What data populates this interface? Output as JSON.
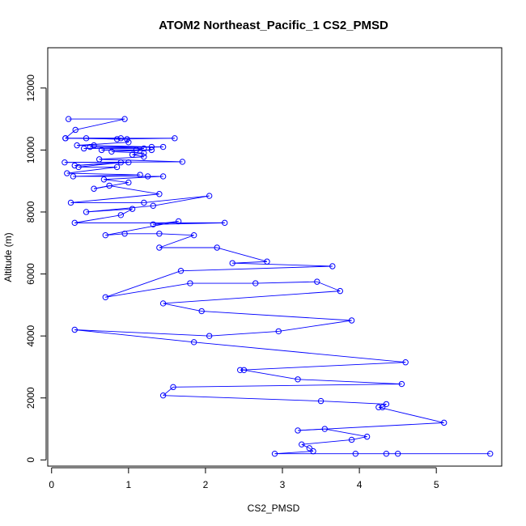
{
  "chart_data": {
    "type": "line",
    "title": "ATOM2 Northeast_Pacific_1 CS2_PMSD",
    "xlabel": "CS2_PMSD",
    "ylabel": "Altitude (m)",
    "xlim": [
      -0.05,
      5.85
    ],
    "ylim": [
      -200,
      13300
    ],
    "xticks": [
      0,
      1,
      2,
      3,
      4,
      5
    ],
    "yticks": [
      0,
      2000,
      4000,
      6000,
      8000,
      10000,
      12000
    ],
    "series_color": "#0000ff",
    "grid": false,
    "marker": "open-circle",
    "points": [
      [
        0.22,
        11000
      ],
      [
        0.95,
        11000
      ],
      [
        0.31,
        10650
      ],
      [
        0.18,
        10380
      ],
      [
        0.9,
        10380
      ],
      [
        0.45,
        10380
      ],
      [
        0.85,
        10350
      ],
      [
        1.6,
        10380
      ],
      [
        0.18,
        10380
      ],
      [
        0.98,
        10350
      ],
      [
        1.0,
        10250
      ],
      [
        0.33,
        10150
      ],
      [
        0.55,
        10150
      ],
      [
        1.3,
        10100
      ],
      [
        0.5,
        10100
      ],
      [
        1.45,
        10100
      ],
      [
        0.42,
        10050
      ],
      [
        1.2,
        10050
      ],
      [
        1.1,
        10000
      ],
      [
        0.65,
        10000
      ],
      [
        1.3,
        10000
      ],
      [
        0.78,
        9950
      ],
      [
        1.2,
        9900
      ],
      [
        1.05,
        9850
      ],
      [
        1.2,
        9780
      ],
      [
        0.62,
        9700
      ],
      [
        1.7,
        9620
      ],
      [
        0.17,
        9600
      ],
      [
        1.0,
        9600
      ],
      [
        0.3,
        9500
      ],
      [
        0.9,
        9600
      ],
      [
        0.35,
        9450
      ],
      [
        0.85,
        9450
      ],
      [
        0.2,
        9250
      ],
      [
        1.15,
        9200
      ],
      [
        0.28,
        9150
      ],
      [
        1.25,
        9150
      ],
      [
        1.45,
        9150
      ],
      [
        0.68,
        9050
      ],
      [
        1.0,
        8950
      ],
      [
        0.55,
        8750
      ],
      [
        0.75,
        8850
      ],
      [
        1.4,
        8580
      ],
      [
        0.25,
        8300
      ],
      [
        1.2,
        8300
      ],
      [
        2.05,
        8520
      ],
      [
        1.32,
        8200
      ],
      [
        0.45,
        8000
      ],
      [
        1.05,
        8100
      ],
      [
        0.9,
        7900
      ],
      [
        0.3,
        7650
      ],
      [
        2.25,
        7650
      ],
      [
        1.32,
        7600
      ],
      [
        1.65,
        7700
      ],
      [
        0.7,
        7250
      ],
      [
        0.95,
        7300
      ],
      [
        1.4,
        7300
      ],
      [
        1.85,
        7250
      ],
      [
        1.4,
        6850
      ],
      [
        2.15,
        6850
      ],
      [
        2.8,
        6400
      ],
      [
        2.35,
        6350
      ],
      [
        3.65,
        6250
      ],
      [
        1.68,
        6100
      ],
      [
        0.7,
        5250
      ],
      [
        1.8,
        5700
      ],
      [
        2.65,
        5700
      ],
      [
        3.45,
        5750
      ],
      [
        3.75,
        5450
      ],
      [
        1.45,
        5050
      ],
      [
        1.95,
        4800
      ],
      [
        3.9,
        4500
      ],
      [
        2.95,
        4150
      ],
      [
        2.05,
        4000
      ],
      [
        0.3,
        4200
      ],
      [
        1.85,
        3800
      ],
      [
        4.6,
        3150
      ],
      [
        2.45,
        2900
      ],
      [
        2.5,
        2900
      ],
      [
        3.2,
        2600
      ],
      [
        4.55,
        2450
      ],
      [
        1.58,
        2350
      ],
      [
        1.45,
        2080
      ],
      [
        3.5,
        1900
      ],
      [
        4.35,
        1800
      ],
      [
        4.3,
        1700
      ],
      [
        4.25,
        1700
      ],
      [
        5.1,
        1200
      ],
      [
        3.2,
        950
      ],
      [
        3.55,
        1000
      ],
      [
        4.1,
        750
      ],
      [
        3.9,
        650
      ],
      [
        3.25,
        500
      ],
      [
        3.35,
        380
      ],
      [
        3.4,
        280
      ],
      [
        2.9,
        200
      ],
      [
        3.95,
        200
      ],
      [
        4.35,
        200
      ],
      [
        4.5,
        200
      ],
      [
        5.7,
        200
      ]
    ]
  }
}
